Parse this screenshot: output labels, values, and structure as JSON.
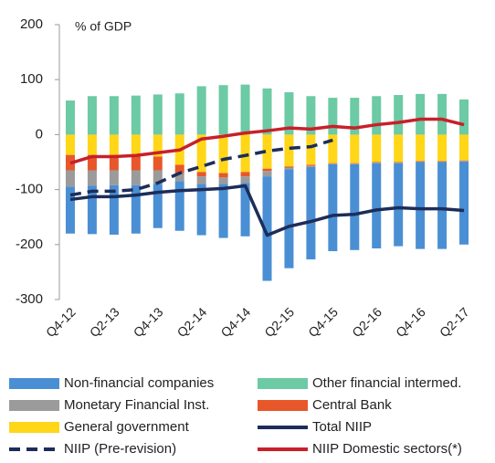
{
  "chart_data": {
    "type": "bar",
    "y_label": "% of GDP",
    "categories": [
      "Q4-12",
      null,
      "Q2-13",
      null,
      "Q4-13",
      null,
      "Q2-14",
      null,
      "Q4-14",
      null,
      "Q2-15",
      null,
      "Q4-15",
      null,
      "Q2-16",
      null,
      "Q4-16",
      null,
      "Q2-17"
    ],
    "ylim": [
      -300,
      200
    ],
    "yticks": [
      -300,
      -200,
      -100,
      0,
      100,
      200
    ],
    "series": [
      {
        "name": "Non-financial companies",
        "type": "bar",
        "color": "#4a8fd4",
        "values": [
          -85,
          -88,
          -90,
          -88,
          -80,
          -90,
          -93,
          -98,
          -97,
          -190,
          -180,
          -168,
          -158,
          -156,
          -155,
          -151,
          -158,
          -158,
          -151
        ]
      },
      {
        "name": "Other financial intermed.",
        "type": "bar",
        "color": "#6ccaa4",
        "values": [
          62,
          70,
          70,
          71,
          73,
          75,
          88,
          90,
          91,
          84,
          77,
          70,
          67,
          67,
          70,
          72,
          74,
          74,
          64
        ]
      },
      {
        "name": "Monetary Financial Inst.",
        "type": "bar",
        "color": "#9b9b9b",
        "values": [
          -30,
          -28,
          -27,
          -27,
          -25,
          -15,
          -14,
          -12,
          -12,
          -10,
          -3,
          -2,
          -1,
          -1,
          -1,
          -1,
          -1,
          -1,
          -1
        ]
      },
      {
        "name": "Central Bank",
        "type": "bar",
        "color": "#e8572a",
        "values": [
          -28,
          -28,
          -28,
          -28,
          -25,
          -15,
          -8,
          -8,
          -8,
          -4,
          -2,
          -2,
          -1,
          -1,
          -1,
          -1,
          -1,
          -1,
          -1
        ]
      },
      {
        "name": "General government",
        "type": "bar",
        "color": "#ffd618",
        "values": [
          -37,
          -37,
          -37,
          -37,
          -40,
          -55,
          -68,
          -70,
          -68,
          -62,
          -58,
          -55,
          -52,
          -52,
          -50,
          -50,
          -48,
          -48,
          -47
        ]
      },
      {
        "name": "Total NIIP",
        "type": "line",
        "color": "#1c2d5a",
        "values": [
          -118,
          -113,
          -113,
          -110,
          -105,
          -102,
          -100,
          -98,
          -93,
          -183,
          -167,
          -158,
          -147,
          -145,
          -137,
          -133,
          -135,
          -135,
          -138
        ]
      },
      {
        "name": "NIIP (Pre-revision)",
        "type": "line",
        "dashed": true,
        "color": "#1c2d5a",
        "values": [
          -110,
          -103,
          -103,
          -100,
          -88,
          -70,
          -58,
          -45,
          -38,
          -30,
          -25,
          -22,
          -10,
          null,
          null,
          null,
          null,
          null,
          null
        ]
      },
      {
        "name": "NIIP Domestic sectors(*)",
        "type": "line",
        "color": "#c8202a",
        "values": [
          -52,
          -40,
          -40,
          -38,
          -33,
          -28,
          -8,
          -3,
          3,
          7,
          12,
          10,
          15,
          12,
          18,
          22,
          28,
          28,
          18
        ]
      }
    ]
  }
}
